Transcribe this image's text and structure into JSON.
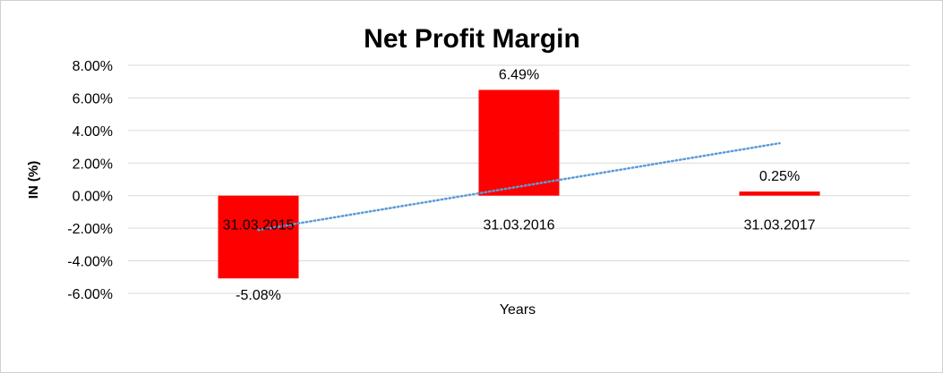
{
  "chart_data": {
    "type": "bar",
    "title": "Net Profit Margin",
    "xlabel": "Years",
    "ylabel": "IN (%)",
    "categories": [
      "31.03.2015",
      "31.03.2016",
      "31.03.2017"
    ],
    "values": [
      -5.08,
      6.49,
      0.25
    ],
    "data_labels": [
      "-5.08%",
      "6.49%",
      "0.25%"
    ],
    "ylim": [
      -6,
      8
    ],
    "yticks": [
      8,
      6,
      4,
      2,
      0,
      -2,
      -4,
      -6
    ],
    "ytick_labels": [
      "8.00%",
      "6.00%",
      "4.00%",
      "2.00%",
      "0.00%",
      "-2.00%",
      "-4.00%",
      "-6.00%"
    ],
    "grid": true,
    "legend": "none",
    "trendline": {
      "type": "linear",
      "style": "dotted"
    },
    "colors": {
      "bar": "#ff0000",
      "trendline": "#5b9bd5",
      "grid": "#d9d9d9"
    }
  }
}
